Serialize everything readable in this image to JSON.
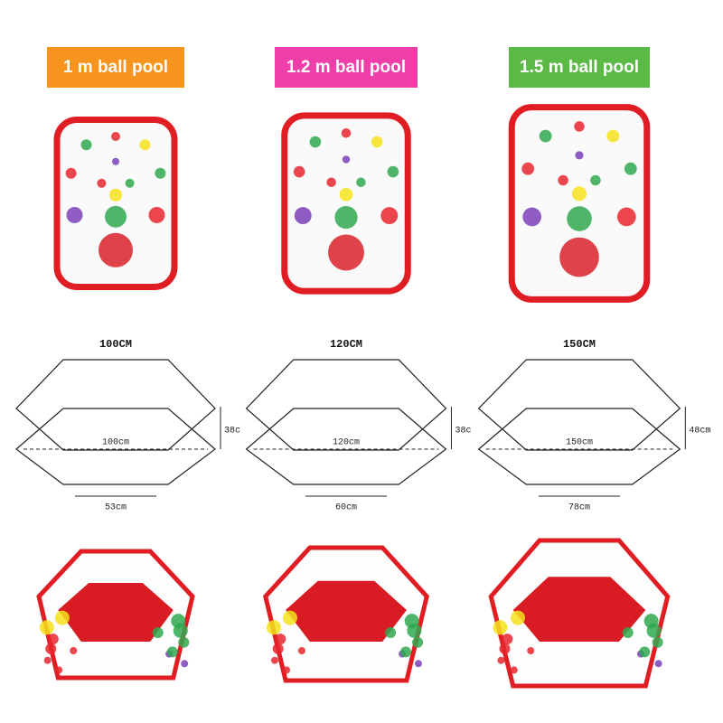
{
  "products": [
    {
      "label": "1 m ball pool",
      "size_title": "100CM",
      "height": "38c",
      "diameter": "100cm",
      "side": "53cm"
    },
    {
      "label": "1.2 m ball pool",
      "size_title": "120CM",
      "height": "38c",
      "diameter": "120cm",
      "side": "60cm"
    },
    {
      "label": "1.5 m ball pool",
      "size_title": "150CM",
      "height": "48cm",
      "diameter": "150cm",
      "side": "78cm"
    }
  ]
}
